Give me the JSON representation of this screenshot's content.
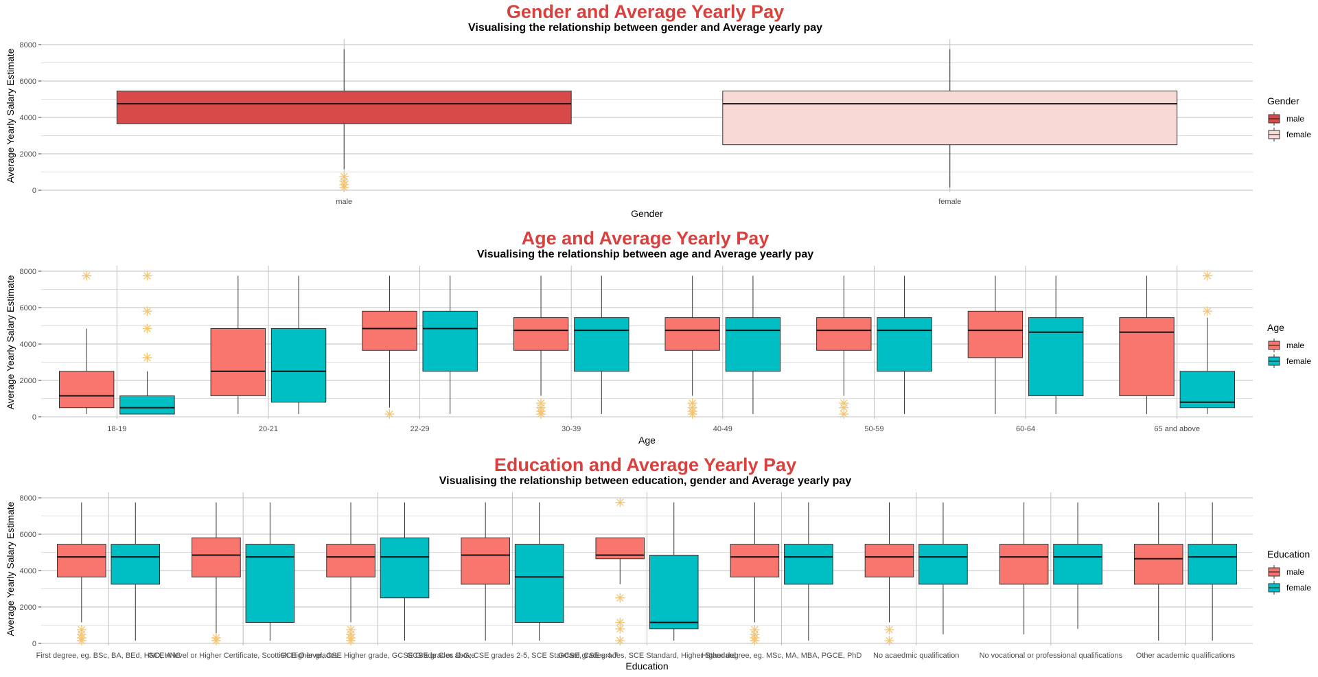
{
  "colors": {
    "title": "#d9413f",
    "male_gender": "#d84a4a",
    "female_gender": "#f9d9d6",
    "male": "#f8766d",
    "female": "#00bfc4",
    "outlier": "#f5c56e",
    "grid": "#bdbdbd"
  },
  "chart_data": [
    {
      "type": "box",
      "title": "Gender and Average Yearly Pay",
      "subtitle": "Visualising the relationship between gender and Average yearly pay",
      "xlabel": "Gender",
      "ylabel": "Average Yearly Salary Estimate",
      "ylim": [
        0,
        8000
      ],
      "yticks": [
        0,
        2000,
        4000,
        6000,
        8000
      ],
      "legend": {
        "title": "Gender",
        "entries": [
          "male",
          "female"
        ],
        "position": "right"
      },
      "categories": [
        "male",
        "female"
      ],
      "series": [
        {
          "name": "male",
          "color": "#d84a4a",
          "boxes": [
            {
              "cat": "male",
              "lower": 1150,
              "q1": 3650,
              "median": 4750,
              "q3": 5450,
              "upper": 7750,
              "outliers": [
                150,
                300,
                500,
                750
              ]
            },
            null
          ]
        },
        {
          "name": "female",
          "color": "#f9d9d6",
          "boxes": [
            null,
            {
              "cat": "female",
              "lower": 150,
              "q1": 2500,
              "median": 4750,
              "q3": 5450,
              "upper": 7750,
              "outliers": []
            }
          ]
        }
      ]
    },
    {
      "type": "box",
      "title": "Age and Average Yearly Pay",
      "subtitle": "Visualising the relationship between age and Average yearly pay",
      "xlabel": "Age",
      "ylabel": "Average Yearly Salary Estimate",
      "ylim": [
        0,
        8000
      ],
      "yticks": [
        0,
        2000,
        4000,
        6000,
        8000
      ],
      "legend": {
        "title": "Age",
        "entries": [
          "male",
          "female"
        ],
        "position": "right"
      },
      "categories": [
        "18-19",
        "20-21",
        "22-29",
        "30-39",
        "40-49",
        "50-59",
        "60-64",
        "65 and above"
      ],
      "series": [
        {
          "name": "male",
          "color": "#f8766d",
          "boxes": [
            {
              "lower": 150,
              "q1": 500,
              "median": 1150,
              "q3": 2500,
              "upper": 4850,
              "outliers": [
                7750
              ]
            },
            {
              "lower": 150,
              "q1": 1150,
              "median": 2500,
              "q3": 4850,
              "upper": 7750,
              "outliers": []
            },
            {
              "lower": 500,
              "q1": 3650,
              "median": 4850,
              "q3": 5800,
              "upper": 7750,
              "outliers": [
                150
              ]
            },
            {
              "lower": 1150,
              "q1": 3650,
              "median": 4750,
              "q3": 5450,
              "upper": 7750,
              "outliers": [
                150,
                300,
                500,
                750
              ]
            },
            {
              "lower": 1150,
              "q1": 3650,
              "median": 4750,
              "q3": 5450,
              "upper": 7750,
              "outliers": [
                150,
                300,
                500,
                750
              ]
            },
            {
              "lower": 1150,
              "q1": 3650,
              "median": 4750,
              "q3": 5450,
              "upper": 7750,
              "outliers": [
                150,
                500,
                750
              ]
            },
            {
              "lower": 150,
              "q1": 3250,
              "median": 4750,
              "q3": 5800,
              "upper": 7750,
              "outliers": []
            },
            {
              "lower": 150,
              "q1": 1150,
              "median": 4650,
              "q3": 5450,
              "upper": 7750,
              "outliers": []
            }
          ]
        },
        {
          "name": "female",
          "color": "#00bfc4",
          "boxes": [
            {
              "lower": 150,
              "q1": 150,
              "median": 500,
              "q3": 1150,
              "upper": 2500,
              "outliers": [
                3250,
                4850,
                5800,
                7750
              ]
            },
            {
              "lower": 150,
              "q1": 800,
              "median": 2500,
              "q3": 4850,
              "upper": 7750,
              "outliers": []
            },
            {
              "lower": 150,
              "q1": 2500,
              "median": 4850,
              "q3": 5800,
              "upper": 7750,
              "outliers": []
            },
            {
              "lower": 150,
              "q1": 2500,
              "median": 4750,
              "q3": 5450,
              "upper": 7750,
              "outliers": []
            },
            {
              "lower": 150,
              "q1": 2500,
              "median": 4750,
              "q3": 5450,
              "upper": 7750,
              "outliers": []
            },
            {
              "lower": 150,
              "q1": 2500,
              "median": 4750,
              "q3": 5450,
              "upper": 7750,
              "outliers": []
            },
            {
              "lower": 150,
              "q1": 1150,
              "median": 4650,
              "q3": 5450,
              "upper": 7750,
              "outliers": []
            },
            {
              "lower": 150,
              "q1": 500,
              "median": 800,
              "q3": 2500,
              "upper": 5450,
              "outliers": [
                5800,
                7750
              ]
            }
          ]
        }
      ]
    },
    {
      "type": "box",
      "title": "Education and Average Yearly Pay",
      "subtitle": "Visualising the relationship between education, gender and Average yearly pay",
      "xlabel": "Education",
      "ylabel": "Average Yearly Salary Estimate",
      "ylim": [
        0,
        8000
      ],
      "yticks": [
        0,
        2000,
        4000,
        6000,
        8000
      ],
      "legend": {
        "title": "Education",
        "entries": [
          "male",
          "female"
        ],
        "position": "right"
      },
      "categories": [
        "First degree, eg. BSc, BA, BEd, HND, HNC",
        "GCE A level or Higher Certificate, Scottish Higher grades",
        "GCE O level, CSE Higher grade, GCSE Grade C or above",
        "GCSE grades D-G, CSE grades 2-5, SCE Standard grades 4-7",
        "GCSE, CSE grades, SCE Standard, Higher Standard",
        "Higher degree, eg. MSc, MA, MBA, PGCE, PhD",
        "No academic qualification",
        "No vocational or professional qualifications",
        "Other academic qualifications"
      ],
      "tick_labels": [
        "First degree, eg. BSc, BA, BEd, HND, HNC",
        "GCE A level or Higher Certificate, Scottish Higher grades",
        "GCE O level, CSE Higher grade, GCSE Grade C or above",
        "GCSE grades D-G, CSE grades 2-5, SCE Standard grades 4-7",
        "GCSE, CSE grades, SCE Standard, Higher Standard",
        "Higher degree, eg. MSc, MA, MBA, PGCE, PhD",
        "No acaedmic qualification",
        "No vocational or professional qualifications",
        "Other academic qualifications"
      ],
      "series": [
        {
          "name": "male",
          "color": "#f8766d",
          "boxes": [
            {
              "lower": 1150,
              "q1": 3650,
              "median": 4750,
              "q3": 5450,
              "upper": 7750,
              "outliers": [
                150,
                300,
                500,
                750
              ]
            },
            {
              "lower": 500,
              "q1": 3650,
              "median": 4850,
              "q3": 5800,
              "upper": 7750,
              "outliers": [
                150,
                300
              ]
            },
            {
              "lower": 1150,
              "q1": 3650,
              "median": 4750,
              "q3": 5450,
              "upper": 7750,
              "outliers": [
                150,
                300,
                500,
                750
              ]
            },
            {
              "lower": 150,
              "q1": 3250,
              "median": 4850,
              "q3": 5800,
              "upper": 7750,
              "outliers": []
            },
            {
              "lower": 3250,
              "q1": 4650,
              "median": 4850,
              "q3": 5800,
              "upper": 5800,
              "outliers": [
                150,
                800,
                1150,
                2500,
                7750
              ]
            },
            {
              "lower": 1150,
              "q1": 3650,
              "median": 4750,
              "q3": 5450,
              "upper": 7750,
              "outliers": [
                150,
                300,
                500,
                750
              ]
            },
            {
              "lower": 1150,
              "q1": 3650,
              "median": 4750,
              "q3": 5450,
              "upper": 7750,
              "outliers": [
                150,
                750
              ]
            },
            {
              "lower": 500,
              "q1": 3250,
              "median": 4750,
              "q3": 5450,
              "upper": 7750,
              "outliers": []
            },
            {
              "lower": 150,
              "q1": 3250,
              "median": 4650,
              "q3": 5450,
              "upper": 7750,
              "outliers": []
            }
          ]
        },
        {
          "name": "female",
          "color": "#00bfc4",
          "boxes": [
            {
              "lower": 150,
              "q1": 3250,
              "median": 4750,
              "q3": 5450,
              "upper": 7750,
              "outliers": []
            },
            {
              "lower": 150,
              "q1": 1150,
              "median": 4750,
              "q3": 5450,
              "upper": 7750,
              "outliers": []
            },
            {
              "lower": 150,
              "q1": 2500,
              "median": 4750,
              "q3": 5800,
              "upper": 7750,
              "outliers": []
            },
            {
              "lower": 150,
              "q1": 1150,
              "median": 3650,
              "q3": 5450,
              "upper": 7750,
              "outliers": []
            },
            {
              "lower": 150,
              "q1": 800,
              "median": 1150,
              "q3": 4850,
              "upper": 7750,
              "outliers": []
            },
            {
              "lower": 150,
              "q1": 3250,
              "median": 4750,
              "q3": 5450,
              "upper": 7750,
              "outliers": []
            },
            {
              "lower": 500,
              "q1": 3250,
              "median": 4750,
              "q3": 5450,
              "upper": 7750,
              "outliers": []
            },
            {
              "lower": 800,
              "q1": 3250,
              "median": 4750,
              "q3": 5450,
              "upper": 7750,
              "outliers": []
            },
            {
              "lower": 150,
              "q1": 3250,
              "median": 4750,
              "q3": 5450,
              "upper": 7750,
              "outliers": []
            }
          ]
        }
      ]
    }
  ]
}
